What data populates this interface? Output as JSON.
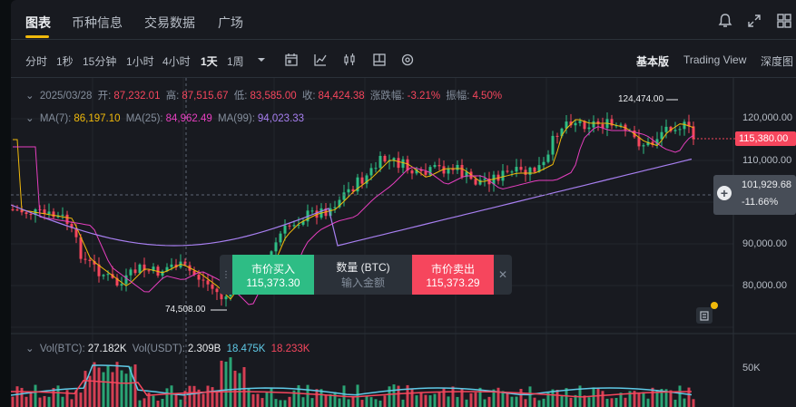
{
  "tabs": [
    "图表",
    "币种信息",
    "交易数据",
    "广场"
  ],
  "timeframes": [
    "分时",
    "1秒",
    "15分钟",
    "1小时",
    "4小时",
    "1天",
    "1周"
  ],
  "active_timeframe": "1天",
  "views": [
    "基本版",
    "Trading View",
    "深度图"
  ],
  "active_view": "基本版",
  "ohlc": {
    "date": "2025/03/28",
    "open_label": "开:",
    "open": "87,232.01",
    "high_label": "高:",
    "high": "87,515.67",
    "low_label": "低:",
    "low": "83,585.00",
    "close_label": "收:",
    "close": "84,424.38",
    "change_label": "涨跌幅:",
    "change": "-3.21%",
    "amplitude_label": "振幅:",
    "amplitude": "4.50%"
  },
  "ma": {
    "ma7_label": "MA(7):",
    "ma7": "86,197.10",
    "ma25_label": "MA(25):",
    "ma25": "84,962.49",
    "ma99_label": "MA(99):",
    "ma99": "94,023.33"
  },
  "volume": {
    "btc_label": "Vol(BTC):",
    "btc": "27.182K",
    "usdt_label": "Vol(USDT):",
    "usdt": "2.309B",
    "ma5": "18.475K",
    "ma10": "18.233K",
    "axis_50k": "50K"
  },
  "trade_panel": {
    "buy_label": "市价买入",
    "buy_price": "115,373.30",
    "qty_label": "数量 (BTC)",
    "qty_placeholder": "输入金额",
    "sell_label": "市价卖出",
    "sell_price": "115,373.29"
  },
  "price_axis": [
    "120,000.00",
    "110,000.00",
    "90,000.00",
    "80,000.00"
  ],
  "current_price": "115,380.00",
  "crosshair_price": "101,929.68",
  "crosshair_pct": "-11.66%",
  "high_marker": "124,474.00",
  "low_marker": "74,508.00",
  "colors": {
    "up": "#2ebd85",
    "down": "#f6465d",
    "ma7": "#f0b90b",
    "ma25": "#e63fbf",
    "ma99": "#a77ff0",
    "accent": "#f0b90b"
  },
  "icons": [
    "bell-icon",
    "expand-icon",
    "grid-icon",
    "calendar-icon",
    "indicator-icon",
    "candle-type-icon",
    "chart-layout-icon",
    "settings-icon",
    "plus-icon",
    "close-icon",
    "grip-icon"
  ]
}
